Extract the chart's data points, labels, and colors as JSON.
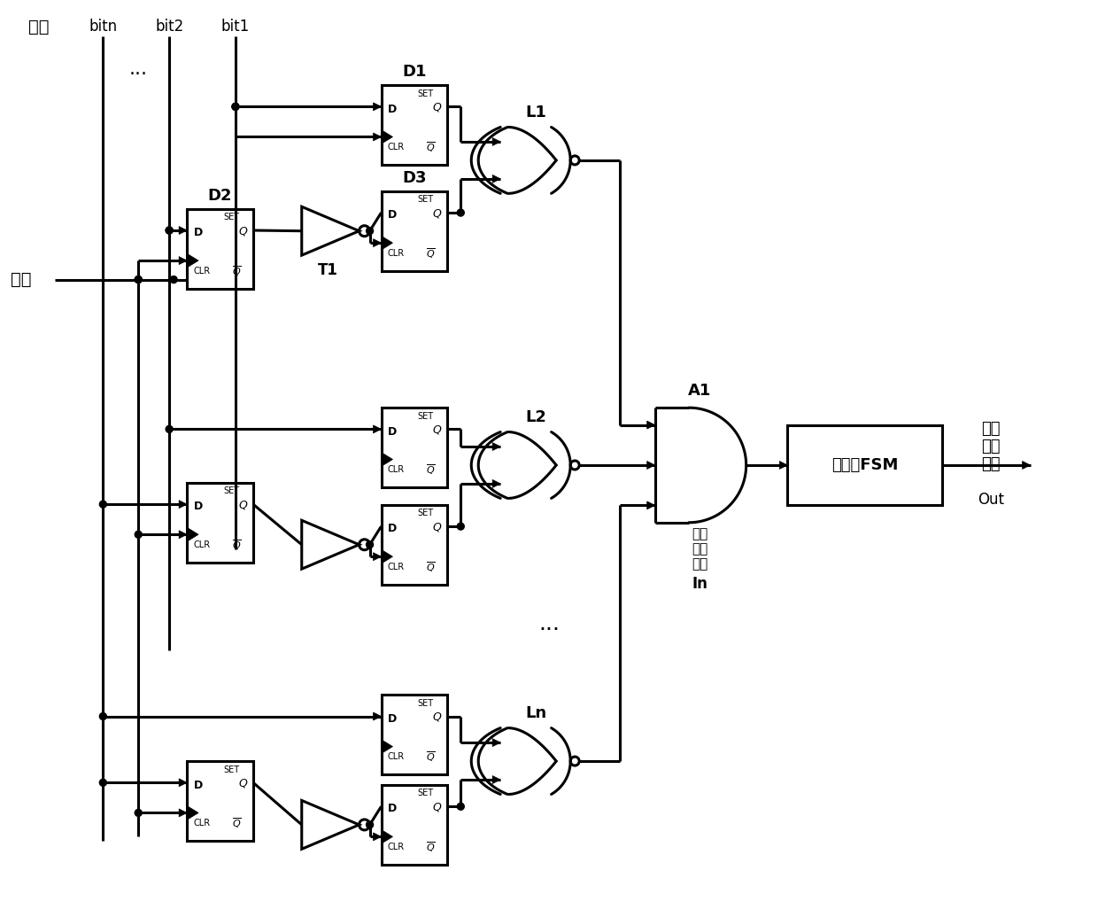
{
  "bg_color": "#ffffff",
  "line_color": "#000000",
  "lw": 2.2,
  "labels": {
    "input": "输入",
    "bitn": "bitn",
    "bit2": "bit2",
    "bit1": "bit1",
    "clock": "时钟",
    "D1": "D1",
    "D2": "D2",
    "D3": "D3",
    "T1": "T1",
    "L1": "L1",
    "L2": "L2",
    "Ln": "Ln",
    "A1": "A1",
    "fsm": "状态机FSM",
    "compare1": "比较",
    "compare2": "输出",
    "compare3": "结果",
    "In": "In",
    "fault1": "故障",
    "fault2": "指示",
    "fault3": "结果",
    "Out": "Out",
    "dots1": "...",
    "dots2": "..."
  }
}
